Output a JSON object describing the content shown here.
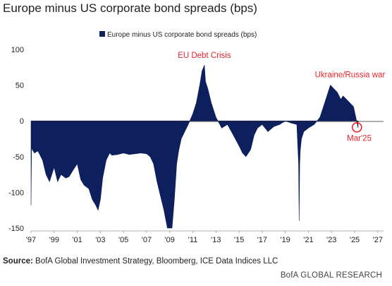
{
  "title": "Europe minus US corporate bond spreads (bps)",
  "source_label": "Source:",
  "source_text": "BofA Global Investment Strategy, Bloomberg, ICE Data Indices LLC",
  "brand": "BofA GLOBAL RESEARCH",
  "chart_data": {
    "type": "area",
    "legend": "Europe minus US corporate bond spreads (bps)",
    "legend_position": "top-center",
    "grid": false,
    "x_ticks": [
      "'97",
      "'99",
      "'01",
      "'03",
      "'05",
      "'07",
      "'09",
      "'11",
      "'13",
      "'15",
      "'17",
      "'19",
      "'21",
      "'23",
      "'25",
      "'27"
    ],
    "xlim": [
      1997,
      2027.5
    ],
    "y_ticks": [
      100,
      50,
      0,
      -50,
      -100,
      -150
    ],
    "ylim": [
      -150,
      100
    ],
    "annotations": [
      {
        "text": "EU Debt Crisis",
        "x": 2012.0,
        "y": 88,
        "color": "#e8232a"
      },
      {
        "text": "Ukraine/Russia war",
        "x": 2024.6,
        "y": 61,
        "color": "#e8232a"
      },
      {
        "text": "Mar'25",
        "x": 2025.4,
        "y": -28,
        "color": "#e8232a",
        "circle_x": 2025.2,
        "circle_y": -9
      }
    ],
    "series": [
      {
        "name": "Europe minus US corporate bond spreads (bps)",
        "color": "#0d1f5c",
        "x": [
          1997.0,
          1997.05,
          1997.1,
          1997.3,
          1997.6,
          1998.0,
          1998.3,
          1998.6,
          1999.0,
          1999.3,
          1999.6,
          2000.0,
          2000.3,
          2000.6,
          2001.0,
          2001.3,
          2001.6,
          2002.0,
          2002.3,
          2002.6,
          2002.8,
          2003.0,
          2003.2,
          2003.5,
          2003.8,
          2004.0,
          2004.5,
          2005.0,
          2005.5,
          2006.0,
          2006.5,
          2007.0,
          2007.3,
          2007.6,
          2007.9,
          2008.2,
          2008.5,
          2008.8,
          2009.0,
          2009.2,
          2009.4,
          2009.6,
          2009.8,
          2010.0,
          2010.3,
          2010.6,
          2011.0,
          2011.3,
          2011.6,
          2011.8,
          2012.0,
          2012.1,
          2012.3,
          2012.6,
          2013.0,
          2013.5,
          2014.0,
          2014.5,
          2015.0,
          2015.3,
          2015.6,
          2016.0,
          2016.3,
          2016.6,
          2017.0,
          2017.5,
          2018.0,
          2018.5,
          2019.0,
          2019.5,
          2020.0,
          2020.15,
          2020.2,
          2020.25,
          2020.3,
          2020.4,
          2020.6,
          2021.0,
          2021.5,
          2022.0,
          2022.3,
          2022.6,
          2022.9,
          2023.2,
          2023.5,
          2023.8,
          2024.0,
          2024.3,
          2024.6,
          2024.9,
          2025.1,
          2025.3
        ],
        "values": [
          -118,
          -35,
          -40,
          -45,
          -42,
          -55,
          -75,
          -85,
          -65,
          -85,
          -75,
          -80,
          -78,
          -70,
          -60,
          -82,
          -90,
          -95,
          -110,
          -118,
          -125,
          -110,
          -80,
          -55,
          -45,
          -48,
          -47,
          -45,
          -47,
          -46,
          -45,
          -46,
          -50,
          -60,
          -85,
          -105,
          -125,
          -150,
          -150,
          -150,
          -110,
          -60,
          -40,
          -25,
          -15,
          -5,
          10,
          25,
          50,
          70,
          78,
          55,
          45,
          25,
          5,
          -10,
          -5,
          -20,
          -35,
          -45,
          -50,
          -40,
          -20,
          -10,
          -5,
          -15,
          -8,
          -5,
          0,
          -3,
          -5,
          -60,
          -140,
          -60,
          -40,
          -25,
          -15,
          -10,
          -5,
          5,
          20,
          35,
          50,
          45,
          40,
          30,
          35,
          30,
          25,
          20,
          5,
          -10
        ]
      }
    ]
  }
}
